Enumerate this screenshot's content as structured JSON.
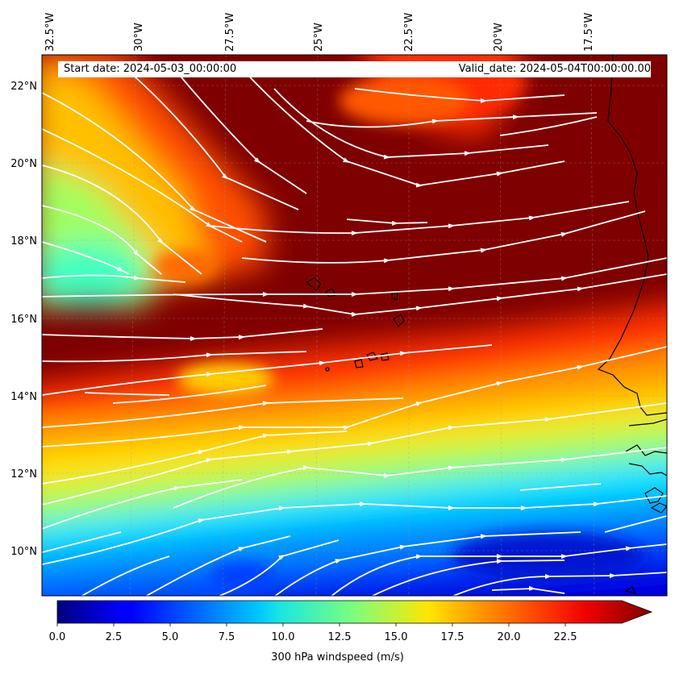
{
  "map": {
    "title_left": "Start date: 2024-05-03_00:00:00",
    "title_right": "Valid_date: 2024-05-04T00:00:00.00",
    "longitude_labels": [
      "32.5°W",
      "30°W",
      "27.5°W",
      "25°W",
      "22.5°W",
      "20°W",
      "17.5°W"
    ],
    "latitude_labels": [
      "22°N",
      "20°N",
      "18°N",
      "16°N",
      "14°N",
      "12°N",
      "10°N"
    ],
    "field": "300 hPa windspeed",
    "overlay": "streamlines",
    "colors": {
      "background_high": "#7f0000",
      "streamline": "#ffffff",
      "coastline": "#000000"
    }
  },
  "colorbar": {
    "label": "300 hPa windspeed (m/s)",
    "ticks": [
      "0.0",
      "2.5",
      "5.0",
      "7.5",
      "10.0",
      "12.5",
      "15.0",
      "17.5",
      "20.0",
      "22.5"
    ],
    "min": 0,
    "max": 25,
    "extend": "max",
    "colormap": "jet"
  }
}
